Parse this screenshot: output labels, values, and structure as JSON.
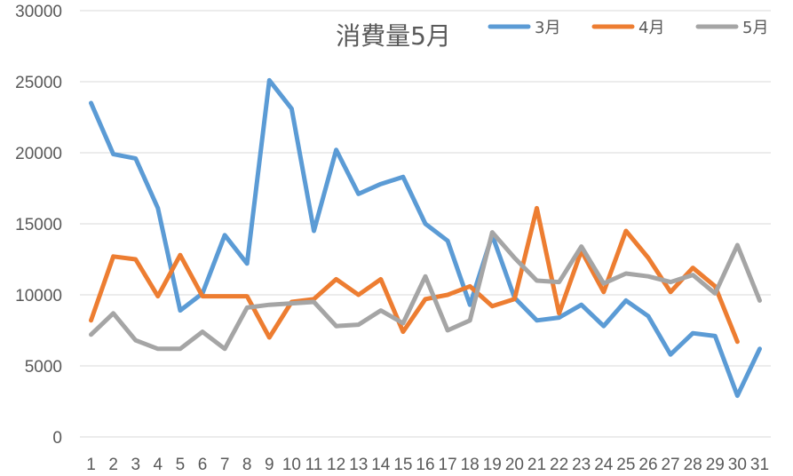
{
  "chart_data": {
    "type": "line",
    "title": "消費量5月",
    "xlabel": "",
    "ylabel": "",
    "categories": [
      "1",
      "2",
      "3",
      "4",
      "5",
      "6",
      "7",
      "8",
      "9",
      "10",
      "11",
      "12",
      "13",
      "14",
      "15",
      "16",
      "17",
      "18",
      "19",
      "20",
      "21",
      "22",
      "23",
      "24",
      "25",
      "26",
      "27",
      "28",
      "29",
      "30",
      "31"
    ],
    "ylim": [
      0,
      30000
    ],
    "yticks": [
      "0",
      "5000",
      "10000",
      "15000",
      "20000",
      "25000",
      "30000"
    ],
    "grid": true,
    "legend_position": "top-right",
    "series": [
      {
        "name": "3月",
        "color": "#5b9bd5",
        "values": [
          23500,
          19900,
          19600,
          16100,
          8900,
          10100,
          14200,
          12200,
          25100,
          23100,
          14500,
          20200,
          17100,
          17800,
          18300,
          15000,
          13800,
          9300,
          14200,
          9800,
          8200,
          8400,
          9300,
          7800,
          9600,
          8500,
          5800,
          7300,
          7100,
          2900,
          6200
        ]
      },
      {
        "name": "4月",
        "color": "#ed7d31",
        "values": [
          8200,
          12700,
          12500,
          9900,
          12800,
          9900,
          9900,
          9900,
          7000,
          9500,
          9700,
          11100,
          10000,
          11100,
          7400,
          9700,
          10000,
          10600,
          9200,
          9700,
          16100,
          8700,
          13100,
          10200,
          14500,
          12600,
          10200,
          11900,
          10600,
          6700,
          null
        ]
      },
      {
        "name": "5月",
        "color": "#a5a5a5",
        "values": [
          7200,
          8700,
          6800,
          6200,
          6200,
          7400,
          6200,
          9100,
          9300,
          9400,
          9500,
          7800,
          7900,
          8900,
          8000,
          11300,
          7500,
          8200,
          14400,
          12600,
          11000,
          10900,
          13400,
          10800,
          11500,
          11300,
          10900,
          11400,
          10100,
          13500,
          9600
        ]
      }
    ]
  }
}
